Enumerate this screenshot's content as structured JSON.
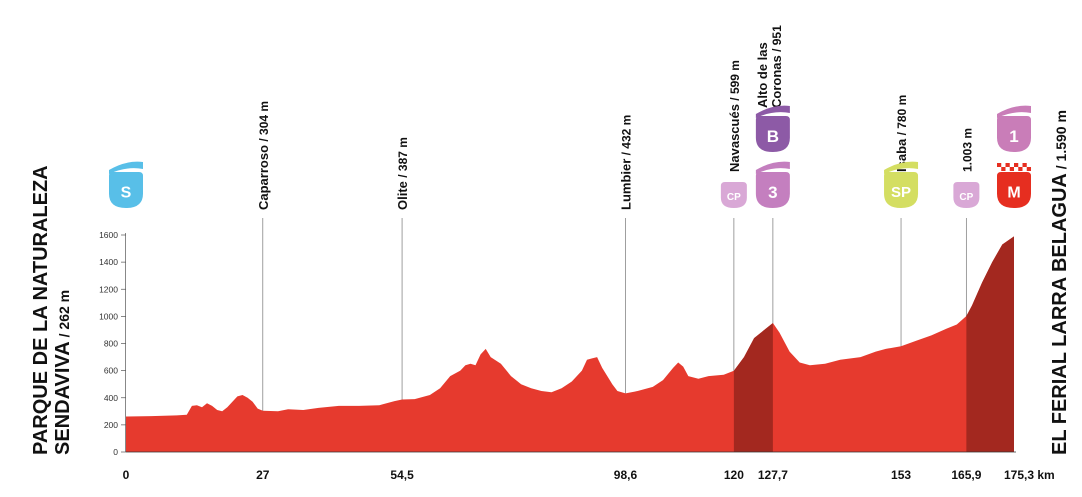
{
  "colors": {
    "profile": "#e63a2e",
    "profile_dark": "#a3281f",
    "gridline": "#888888",
    "badge_start": "#58bfe8",
    "badge_cp": "#d9a8d6",
    "badge_cat3": "#c47fbf",
    "badge_catB": "#8d5aa6",
    "badge_sprint": "#d4de62",
    "badge_goal": "#e62e20",
    "badge_cat1": "#c97db8"
  },
  "start": {
    "name_line1": "PARQUE DE LA NATURALEZA",
    "name_line2": "SENDAVIVA",
    "altitude": " / 262 m",
    "badge": "S"
  },
  "finish": {
    "name": "EL FERIAL LARRA BELAGUA",
    "altitude": " / 1.590 m",
    "badge": "M"
  },
  "chart_data": {
    "type": "area",
    "xlim": [
      0,
      175.3
    ],
    "ylim": [
      0,
      1600
    ],
    "yticks": [
      "0",
      "200",
      "400",
      "600",
      "800",
      "1000",
      "1200",
      "1400",
      "1600"
    ],
    "yticks_values": [
      0,
      200,
      400,
      600,
      800,
      1000,
      1200,
      1400,
      1600
    ],
    "xticks": [
      {
        "km": 0,
        "label": "0"
      },
      {
        "km": 27,
        "label": "27"
      },
      {
        "km": 54.5,
        "label": "54,5"
      },
      {
        "km": 98.6,
        "label": "98,6"
      },
      {
        "km": 120,
        "label": "120"
      },
      {
        "km": 127.7,
        "label": "127,7"
      },
      {
        "km": 153,
        "label": "153"
      },
      {
        "km": 165.9,
        "label": "165,9"
      },
      {
        "km": 175.3,
        "label": "175,3 km"
      }
    ],
    "climbs": [
      {
        "from": 120,
        "to": 127.7
      },
      {
        "from": 165.9,
        "to": 175.3
      }
    ],
    "profile": [
      [
        0,
        262
      ],
      [
        5,
        265
      ],
      [
        10,
        270
      ],
      [
        12,
        275
      ],
      [
        13,
        340
      ],
      [
        14,
        345
      ],
      [
        15,
        330
      ],
      [
        16,
        360
      ],
      [
        17,
        340
      ],
      [
        18,
        310
      ],
      [
        19,
        300
      ],
      [
        20,
        330
      ],
      [
        21,
        370
      ],
      [
        22,
        410
      ],
      [
        23,
        420
      ],
      [
        24,
        400
      ],
      [
        25,
        370
      ],
      [
        26,
        320
      ],
      [
        27,
        304
      ],
      [
        30,
        300
      ],
      [
        32,
        315
      ],
      [
        35,
        310
      ],
      [
        38,
        325
      ],
      [
        42,
        340
      ],
      [
        46,
        340
      ],
      [
        50,
        345
      ],
      [
        53,
        375
      ],
      [
        54.5,
        387
      ],
      [
        57,
        390
      ],
      [
        60,
        420
      ],
      [
        62,
        470
      ],
      [
        64,
        560
      ],
      [
        66,
        600
      ],
      [
        67,
        640
      ],
      [
        68,
        650
      ],
      [
        69,
        640
      ],
      [
        70,
        720
      ],
      [
        71,
        760
      ],
      [
        72,
        700
      ],
      [
        74,
        650
      ],
      [
        76,
        560
      ],
      [
        78,
        500
      ],
      [
        80,
        470
      ],
      [
        82,
        450
      ],
      [
        84,
        440
      ],
      [
        86,
        470
      ],
      [
        88,
        520
      ],
      [
        90,
        600
      ],
      [
        91,
        680
      ],
      [
        92,
        690
      ],
      [
        93,
        700
      ],
      [
        94,
        620
      ],
      [
        96,
        500
      ],
      [
        97,
        450
      ],
      [
        98.6,
        432
      ],
      [
        101,
        450
      ],
      [
        104,
        480
      ],
      [
        106,
        530
      ],
      [
        108,
        620
      ],
      [
        109,
        660
      ],
      [
        110,
        630
      ],
      [
        111,
        560
      ],
      [
        113,
        540
      ],
      [
        115,
        560
      ],
      [
        118,
        570
      ],
      [
        120,
        599
      ],
      [
        122,
        700
      ],
      [
        124,
        840
      ],
      [
        126,
        900
      ],
      [
        127.7,
        951
      ],
      [
        129,
        880
      ],
      [
        131,
        740
      ],
      [
        133,
        660
      ],
      [
        135,
        640
      ],
      [
        138,
        650
      ],
      [
        141,
        680
      ],
      [
        145,
        700
      ],
      [
        148,
        740
      ],
      [
        150,
        760
      ],
      [
        153,
        780
      ],
      [
        156,
        820
      ],
      [
        159,
        860
      ],
      [
        162,
        910
      ],
      [
        164,
        940
      ],
      [
        165.9,
        1003
      ],
      [
        167,
        1080
      ],
      [
        169,
        1250
      ],
      [
        171,
        1400
      ],
      [
        173,
        1530
      ],
      [
        175.3,
        1590
      ]
    ]
  },
  "waypoints": [
    {
      "km": 27,
      "name": "Caparroso",
      "alt": " / 304 m",
      "badge": ""
    },
    {
      "km": 54.5,
      "name": "Olite",
      "alt": " / 387 m",
      "badge": ""
    },
    {
      "km": 98.6,
      "name": "Lumbier",
      "alt": " / 432 m",
      "badge": ""
    },
    {
      "km": 120,
      "name": "Navascués",
      "alt": " / 599 m",
      "badge": "CP"
    },
    {
      "km": 127.7,
      "name": "Alto de las",
      "name2": "Coronas",
      "alt": " / 951",
      "badge": "3",
      "badge2": "B"
    },
    {
      "km": 153,
      "name": "Isaba",
      "alt": " / 780 m",
      "badge": "SP"
    },
    {
      "km": 165.9,
      "name": "",
      "alt": "1.003 m",
      "badge": "CP"
    },
    {
      "km": 175.3,
      "name": "",
      "alt": "",
      "badge": "M",
      "badge2": "1"
    }
  ]
}
